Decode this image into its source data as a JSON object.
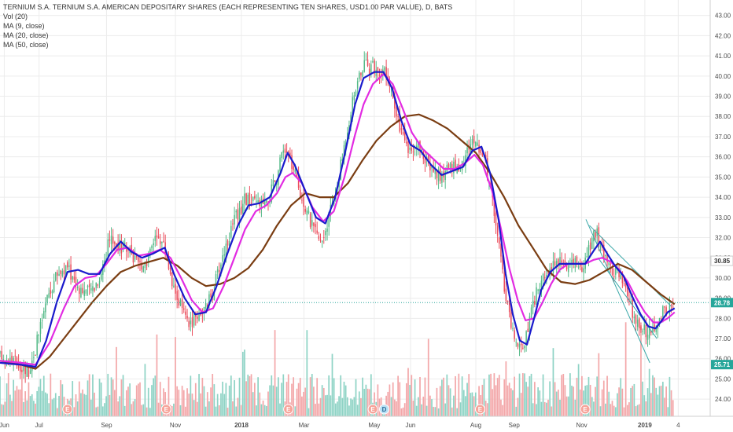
{
  "legend": {
    "title": "TERNIUM S.A. TERNIUM S.A. AMERICAN DEPOSITARY SHARES (EACH REPRESENTING TEN SHARES, USD1.00 PAR VALUE), D, BATS",
    "vol": "Vol (20)",
    "ma9": "MA (9, close)",
    "ma20": "MA (20, close)",
    "ma50": "MA (50, close)"
  },
  "colors": {
    "up": "#53b987",
    "down": "#eb4d5c",
    "ma9": "#1a1acc",
    "ma20": "#e22be2",
    "ma50": "#7a3d12",
    "vol_up": "#8ed3c5",
    "vol_down": "#f3a7a9",
    "last_price_line": "#26a69a",
    "channel": "#3aa8a8",
    "grid": "#ececec"
  },
  "chart_data": {
    "type": "candlestick",
    "y_axis": {
      "ticks": [
        "24.00",
        "25.00",
        "26.00",
        "27.00",
        "28.00",
        "29.00",
        "30.00",
        "31.00",
        "32.00",
        "33.00",
        "34.00",
        "35.00",
        "36.00",
        "37.00",
        "38.00",
        "39.00",
        "40.00",
        "41.00",
        "42.00",
        "43.00"
      ],
      "ylim": [
        23.5,
        43.3
      ]
    },
    "x_axis": {
      "labels": [
        "Jun",
        "Jul",
        "Sep",
        "Nov",
        "2018",
        "Mar",
        "May",
        "Jun",
        "Aug",
        "Sep",
        "Nov",
        "2019",
        "4"
      ]
    },
    "price_labels": [
      {
        "value": "30.85",
        "price": 30.85,
        "color": "#ffffff",
        "text_color": "#333333"
      },
      {
        "value": "28.78",
        "price": 28.78,
        "color": "#26a69a",
        "text_color": "#ffffff"
      },
      {
        "value": "25.71",
        "price": 25.71,
        "color": "#26a69a",
        "text_color": "#ffffff"
      }
    ],
    "last_price": 28.78,
    "earnings_markers": [
      {
        "label": "E",
        "x_frac": 0.095
      },
      {
        "label": "E",
        "x_frac": 0.234
      },
      {
        "label": "E",
        "x_frac": 0.406
      },
      {
        "label": "E",
        "x_frac": 0.525
      },
      {
        "label": "D",
        "x_frac": 0.541
      },
      {
        "label": "E",
        "x_frac": 0.676
      },
      {
        "label": "E",
        "x_frac": 0.824
      }
    ],
    "price_path": [
      [
        0.0,
        26.1
      ],
      [
        0.02,
        25.9
      ],
      [
        0.04,
        25.4
      ],
      [
        0.05,
        26.5
      ],
      [
        0.065,
        28.8
      ],
      [
        0.08,
        30.2
      ],
      [
        0.095,
        30.5
      ],
      [
        0.11,
        29.6
      ],
      [
        0.125,
        29.3
      ],
      [
        0.14,
        30.0
      ],
      [
        0.155,
        32.0
      ],
      [
        0.165,
        31.7
      ],
      [
        0.18,
        31.3
      ],
      [
        0.195,
        30.6
      ],
      [
        0.21,
        31.0
      ],
      [
        0.22,
        32.4
      ],
      [
        0.232,
        31.5
      ],
      [
        0.245,
        29.5
      ],
      [
        0.255,
        28.6
      ],
      [
        0.265,
        27.6
      ],
      [
        0.28,
        28.3
      ],
      [
        0.29,
        28.5
      ],
      [
        0.3,
        29.4
      ],
      [
        0.315,
        31.3
      ],
      [
        0.33,
        32.8
      ],
      [
        0.345,
        33.9
      ],
      [
        0.36,
        33.7
      ],
      [
        0.375,
        33.6
      ],
      [
        0.39,
        35.1
      ],
      [
        0.4,
        36.4
      ],
      [
        0.41,
        35.7
      ],
      [
        0.42,
        34.6
      ],
      [
        0.43,
        33.5
      ],
      [
        0.44,
        32.5
      ],
      [
        0.452,
        31.7
      ],
      [
        0.462,
        32.9
      ],
      [
        0.475,
        34.6
      ],
      [
        0.49,
        37.6
      ],
      [
        0.5,
        39.3
      ],
      [
        0.51,
        40.5
      ],
      [
        0.525,
        40.4
      ],
      [
        0.54,
        40.3
      ],
      [
        0.55,
        39.2
      ],
      [
        0.56,
        37.9
      ],
      [
        0.575,
        36.2
      ],
      [
        0.59,
        36.5
      ],
      [
        0.605,
        35.6
      ],
      [
        0.62,
        35.0
      ],
      [
        0.635,
        35.4
      ],
      [
        0.65,
        35.6
      ],
      [
        0.66,
        36.5
      ],
      [
        0.668,
        36.9
      ],
      [
        0.678,
        36.3
      ],
      [
        0.69,
        34.6
      ],
      [
        0.7,
        32.4
      ],
      [
        0.71,
        29.6
      ],
      [
        0.72,
        27.6
      ],
      [
        0.73,
        26.4
      ],
      [
        0.738,
        26.6
      ],
      [
        0.745,
        27.8
      ],
      [
        0.755,
        29.3
      ],
      [
        0.765,
        29.9
      ],
      [
        0.778,
        30.7
      ],
      [
        0.79,
        30.8
      ],
      [
        0.8,
        30.6
      ],
      [
        0.812,
        30.7
      ],
      [
        0.822,
        30.5
      ],
      [
        0.83,
        31.6
      ],
      [
        0.84,
        32.3
      ],
      [
        0.85,
        31.2
      ],
      [
        0.86,
        30.4
      ],
      [
        0.87,
        30.2
      ],
      [
        0.88,
        29.5
      ],
      [
        0.89,
        28.4
      ],
      [
        0.9,
        27.8
      ],
      [
        0.91,
        27.4
      ],
      [
        0.918,
        27.3
      ],
      [
        0.926,
        27.8
      ],
      [
        0.934,
        28.4
      ],
      [
        0.942,
        28.5
      ],
      [
        0.95,
        28.5
      ]
    ],
    "ma9_path": [
      [
        0.0,
        25.8
      ],
      [
        0.03,
        25.7
      ],
      [
        0.05,
        25.6
      ],
      [
        0.065,
        26.9
      ],
      [
        0.08,
        28.8
      ],
      [
        0.095,
        30.3
      ],
      [
        0.11,
        30.4
      ],
      [
        0.125,
        30.2
      ],
      [
        0.14,
        30.2
      ],
      [
        0.155,
        31.2
      ],
      [
        0.17,
        31.8
      ],
      [
        0.185,
        31.3
      ],
      [
        0.2,
        31.0
      ],
      [
        0.215,
        31.2
      ],
      [
        0.232,
        31.5
      ],
      [
        0.245,
        30.2
      ],
      [
        0.26,
        29.0
      ],
      [
        0.275,
        28.2
      ],
      [
        0.29,
        28.3
      ],
      [
        0.305,
        29.6
      ],
      [
        0.32,
        31.2
      ],
      [
        0.335,
        32.6
      ],
      [
        0.35,
        33.6
      ],
      [
        0.365,
        33.7
      ],
      [
        0.38,
        34.0
      ],
      [
        0.395,
        35.2
      ],
      [
        0.405,
        36.2
      ],
      [
        0.415,
        35.6
      ],
      [
        0.43,
        34.3
      ],
      [
        0.445,
        33.0
      ],
      [
        0.458,
        32.7
      ],
      [
        0.472,
        34.0
      ],
      [
        0.487,
        36.4
      ],
      [
        0.5,
        38.6
      ],
      [
        0.512,
        39.9
      ],
      [
        0.527,
        40.2
      ],
      [
        0.54,
        40.2
      ],
      [
        0.552,
        39.4
      ],
      [
        0.565,
        37.8
      ],
      [
        0.578,
        36.6
      ],
      [
        0.592,
        36.3
      ],
      [
        0.607,
        35.6
      ],
      [
        0.622,
        35.1
      ],
      [
        0.637,
        35.3
      ],
      [
        0.652,
        35.5
      ],
      [
        0.665,
        36.3
      ],
      [
        0.678,
        36.5
      ],
      [
        0.69,
        35.2
      ],
      [
        0.702,
        32.9
      ],
      [
        0.712,
        30.2
      ],
      [
        0.722,
        28.2
      ],
      [
        0.732,
        26.9
      ],
      [
        0.742,
        26.7
      ],
      [
        0.752,
        28.0
      ],
      [
        0.762,
        29.4
      ],
      [
        0.775,
        30.3
      ],
      [
        0.788,
        30.7
      ],
      [
        0.8,
        30.7
      ],
      [
        0.812,
        30.7
      ],
      [
        0.824,
        30.7
      ],
      [
        0.835,
        31.3
      ],
      [
        0.845,
        31.8
      ],
      [
        0.855,
        31.2
      ],
      [
        0.866,
        30.6
      ],
      [
        0.878,
        30.1
      ],
      [
        0.89,
        29.1
      ],
      [
        0.902,
        28.2
      ],
      [
        0.913,
        27.6
      ],
      [
        0.923,
        27.5
      ],
      [
        0.932,
        27.9
      ],
      [
        0.94,
        28.3
      ],
      [
        0.95,
        28.5
      ]
    ],
    "ma20_path": [
      [
        0.0,
        25.9
      ],
      [
        0.03,
        25.8
      ],
      [
        0.05,
        25.7
      ],
      [
        0.07,
        26.8
      ],
      [
        0.09,
        28.5
      ],
      [
        0.105,
        29.6
      ],
      [
        0.12,
        30.0
      ],
      [
        0.135,
        30.1
      ],
      [
        0.15,
        30.7
      ],
      [
        0.165,
        31.4
      ],
      [
        0.18,
        31.5
      ],
      [
        0.195,
        31.1
      ],
      [
        0.21,
        31.2
      ],
      [
        0.225,
        31.4
      ],
      [
        0.24,
        31.0
      ],
      [
        0.255,
        30.0
      ],
      [
        0.27,
        28.9
      ],
      [
        0.285,
        28.3
      ],
      [
        0.3,
        28.5
      ],
      [
        0.315,
        29.6
      ],
      [
        0.33,
        31.0
      ],
      [
        0.345,
        32.4
      ],
      [
        0.36,
        33.3
      ],
      [
        0.375,
        33.6
      ],
      [
        0.39,
        34.2
      ],
      [
        0.402,
        35.0
      ],
      [
        0.412,
        35.2
      ],
      [
        0.425,
        34.7
      ],
      [
        0.44,
        33.5
      ],
      [
        0.455,
        32.8
      ],
      [
        0.47,
        33.3
      ],
      [
        0.485,
        35.0
      ],
      [
        0.5,
        37.1
      ],
      [
        0.512,
        38.6
      ],
      [
        0.525,
        39.6
      ],
      [
        0.54,
        40.1
      ],
      [
        0.553,
        39.6
      ],
      [
        0.567,
        38.4
      ],
      [
        0.58,
        37.2
      ],
      [
        0.595,
        36.4
      ],
      [
        0.61,
        35.9
      ],
      [
        0.625,
        35.4
      ],
      [
        0.64,
        35.4
      ],
      [
        0.655,
        35.7
      ],
      [
        0.668,
        36.1
      ],
      [
        0.68,
        35.6
      ],
      [
        0.693,
        34.3
      ],
      [
        0.705,
        32.5
      ],
      [
        0.717,
        30.5
      ],
      [
        0.729,
        28.9
      ],
      [
        0.74,
        27.9
      ],
      [
        0.752,
        28.0
      ],
      [
        0.764,
        28.8
      ],
      [
        0.776,
        29.7
      ],
      [
        0.788,
        30.4
      ],
      [
        0.8,
        30.7
      ],
      [
        0.812,
        30.7
      ],
      [
        0.824,
        30.7
      ],
      [
        0.836,
        30.9
      ],
      [
        0.848,
        31.0
      ],
      [
        0.86,
        30.8
      ],
      [
        0.872,
        30.4
      ],
      [
        0.884,
        29.8
      ],
      [
        0.896,
        29.0
      ],
      [
        0.908,
        28.3
      ],
      [
        0.92,
        27.8
      ],
      [
        0.93,
        27.8
      ],
      [
        0.94,
        28.0
      ],
      [
        0.95,
        28.3
      ]
    ],
    "ma50_path": [
      [
        0.0,
        25.9
      ],
      [
        0.03,
        25.7
      ],
      [
        0.05,
        25.5
      ],
      [
        0.07,
        26.1
      ],
      [
        0.09,
        27.0
      ],
      [
        0.11,
        27.9
      ],
      [
        0.13,
        28.8
      ],
      [
        0.15,
        29.6
      ],
      [
        0.17,
        30.3
      ],
      [
        0.19,
        30.6
      ],
      [
        0.21,
        30.8
      ],
      [
        0.23,
        31.0
      ],
      [
        0.25,
        30.6
      ],
      [
        0.27,
        30.0
      ],
      [
        0.29,
        29.6
      ],
      [
        0.31,
        29.7
      ],
      [
        0.33,
        30.0
      ],
      [
        0.35,
        30.5
      ],
      [
        0.37,
        31.4
      ],
      [
        0.39,
        32.6
      ],
      [
        0.41,
        33.6
      ],
      [
        0.43,
        34.2
      ],
      [
        0.45,
        34.0
      ],
      [
        0.47,
        34.0
      ],
      [
        0.49,
        34.7
      ],
      [
        0.51,
        35.8
      ],
      [
        0.53,
        36.8
      ],
      [
        0.55,
        37.5
      ],
      [
        0.57,
        38.0
      ],
      [
        0.59,
        38.1
      ],
      [
        0.61,
        37.8
      ],
      [
        0.63,
        37.4
      ],
      [
        0.65,
        36.8
      ],
      [
        0.67,
        36.2
      ],
      [
        0.69,
        35.2
      ],
      [
        0.71,
        34.0
      ],
      [
        0.73,
        32.6
      ],
      [
        0.75,
        31.5
      ],
      [
        0.77,
        30.4
      ],
      [
        0.79,
        29.8
      ],
      [
        0.81,
        29.7
      ],
      [
        0.83,
        29.9
      ],
      [
        0.85,
        30.3
      ],
      [
        0.87,
        30.7
      ],
      [
        0.89,
        30.4
      ],
      [
        0.91,
        29.8
      ],
      [
        0.93,
        29.2
      ],
      [
        0.95,
        28.7
      ]
    ]
  }
}
